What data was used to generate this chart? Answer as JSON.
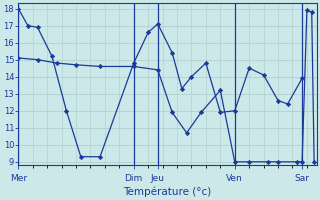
{
  "background_color": "#cce8e8",
  "grid_color": "#aacccc",
  "line_color": "#1a3a9a",
  "marker_color": "#1a3a9a",
  "xlabel": "Température (°c)",
  "xlabel_color": "#1a3a9a",
  "tick_color": "#1a3a9a",
  "ylim": [
    8.8,
    18.3
  ],
  "yticks": [
    9,
    10,
    11,
    12,
    13,
    14,
    15,
    16,
    17,
    18
  ],
  "day_labels": [
    "Mer",
    "Dim",
    "Jeu",
    "Ven",
    "Sar"
  ],
  "day_positions": [
    0,
    48,
    58,
    90,
    118
  ],
  "xlim": [
    0,
    124
  ],
  "series1_x": [
    0,
    4,
    8,
    14,
    20,
    26,
    34,
    48,
    54,
    58,
    64,
    68,
    72,
    78,
    84,
    90,
    96,
    102,
    108,
    112,
    118
  ],
  "series1_y": [
    18,
    17,
    16.9,
    15.2,
    12.0,
    9.3,
    9.3,
    14.8,
    16.6,
    17.1,
    15.4,
    13.3,
    14.0,
    14.8,
    11.9,
    12.0,
    14.5,
    14.1,
    12.6,
    12.4,
    13.9
  ],
  "series2_x": [
    0,
    8,
    16,
    24,
    34,
    48,
    58,
    64,
    70,
    76,
    84,
    90,
    96,
    104,
    108,
    116,
    118,
    120,
    122,
    123
  ],
  "series2_y": [
    15.1,
    15.0,
    14.8,
    14.7,
    14.6,
    14.6,
    14.4,
    11.9,
    10.7,
    11.9,
    13.2,
    9.0,
    9.0,
    9.0,
    9.0,
    9.0,
    9.0,
    17.9,
    17.8,
    9.0
  ]
}
